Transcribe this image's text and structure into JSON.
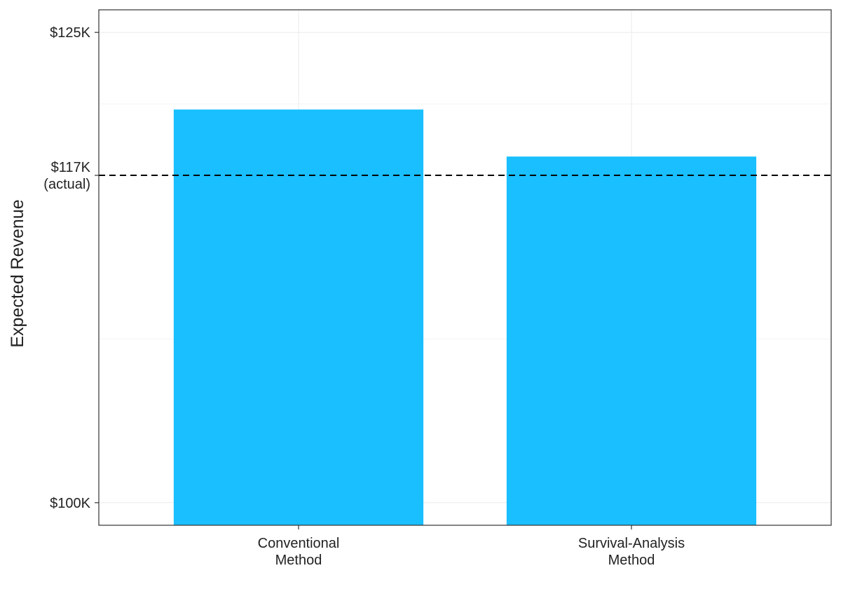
{
  "chart_data": {
    "type": "bar",
    "y_label": "Expected Revenue",
    "categories": [
      "Conventional\nMethod",
      "Survival-Analysis\nMethod"
    ],
    "values": [
      120900,
      118400
    ],
    "color": "#19bfff",
    "ylim": [
      98800,
      126200
    ],
    "yticks": [
      {
        "value": 100000,
        "label": "$100K"
      },
      {
        "value": 117400,
        "label": "$117K\n(actual)"
      },
      {
        "value": 125000,
        "label": "$125K"
      }
    ],
    "reference_line": 117400,
    "grid": true
  }
}
